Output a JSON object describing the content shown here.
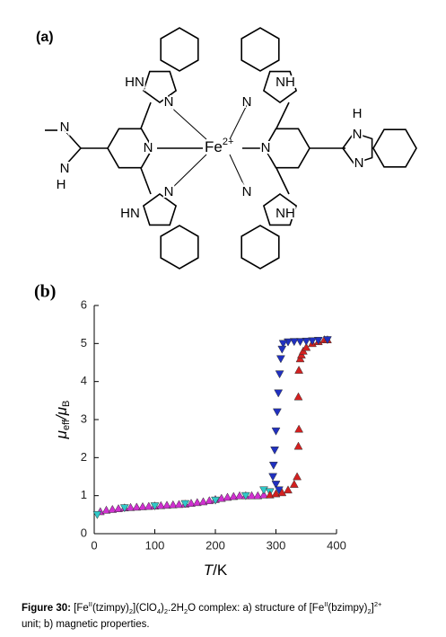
{
  "structure": {
    "label": "(a)",
    "metal": "Fe",
    "charge": "2+",
    "atoms": [
      "HN",
      "N",
      "NH",
      "N",
      "N",
      "N",
      "N",
      "HN",
      "N",
      "NH",
      "N",
      "N",
      "H",
      "N",
      "N",
      "H"
    ]
  },
  "chart_data": {
    "type": "scatter",
    "label": "(b)",
    "xlabel_parts": [
      "T",
      "/K"
    ],
    "ylabel_parts": [
      "μ",
      "eff",
      "/μ",
      "B"
    ],
    "xlim": [
      0,
      400
    ],
    "xticks": [
      0,
      100,
      200,
      300,
      400
    ],
    "ylim": [
      0,
      6
    ],
    "yticks": [
      0,
      1,
      2,
      3,
      4,
      5,
      6
    ],
    "series": [
      {
        "marker": "up",
        "color": "#d030d0",
        "x": [
          10,
          20,
          30,
          40,
          50,
          60,
          70,
          80,
          90,
          100,
          110,
          120,
          130,
          140,
          150,
          160,
          170,
          180,
          190,
          200,
          210,
          220,
          230,
          240,
          250,
          260,
          270,
          280
        ],
        "values": [
          0.58,
          0.62,
          0.64,
          0.66,
          0.68,
          0.69,
          0.7,
          0.71,
          0.72,
          0.73,
          0.74,
          0.75,
          0.76,
          0.77,
          0.78,
          0.8,
          0.82,
          0.84,
          0.87,
          0.9,
          0.93,
          0.96,
          0.98,
          1.0,
          1.0,
          1.0,
          1.0,
          1.02
        ]
      },
      {
        "marker": "down",
        "color": "#30c8c8",
        "x": [
          5,
          50,
          100,
          150,
          200,
          250,
          280,
          290
        ],
        "values": [
          0.5,
          0.68,
          0.73,
          0.79,
          0.88,
          1.0,
          1.15,
          1.1
        ]
      },
      {
        "marker": "up",
        "color": "#d42020",
        "x": [
          290,
          300,
          310,
          320,
          330,
          335,
          337,
          338,
          337,
          338,
          340,
          342,
          345,
          350,
          360,
          370,
          380,
          385
        ],
        "values": [
          1.02,
          1.05,
          1.08,
          1.15,
          1.3,
          1.5,
          2.3,
          2.75,
          3.6,
          4.3,
          4.6,
          4.7,
          4.8,
          4.9,
          5.0,
          5.05,
          5.1,
          5.1
        ]
      },
      {
        "marker": "down",
        "color": "#2030c0",
        "x": [
          385,
          370,
          360,
          350,
          340,
          330,
          320,
          312,
          310,
          308,
          306,
          304,
          302,
          300,
          298,
          296,
          295,
          300,
          305
        ],
        "values": [
          5.1,
          5.08,
          5.07,
          5.06,
          5.05,
          5.05,
          5.04,
          5.0,
          4.85,
          4.6,
          4.2,
          3.7,
          3.2,
          2.7,
          2.2,
          1.8,
          1.5,
          1.3,
          1.15
        ]
      }
    ]
  },
  "caption": [
    "Figure 30:",
    " [Fe",
    "II",
    "(tzimpy)",
    "2",
    "](ClO",
    "4",
    ")",
    "2",
    ".2H",
    "2",
    "O complex: a) structure of [Fe",
    "II",
    "(bzimpy)",
    "2",
    "]",
    "2+",
    "unit; b) magnetic properties."
  ]
}
